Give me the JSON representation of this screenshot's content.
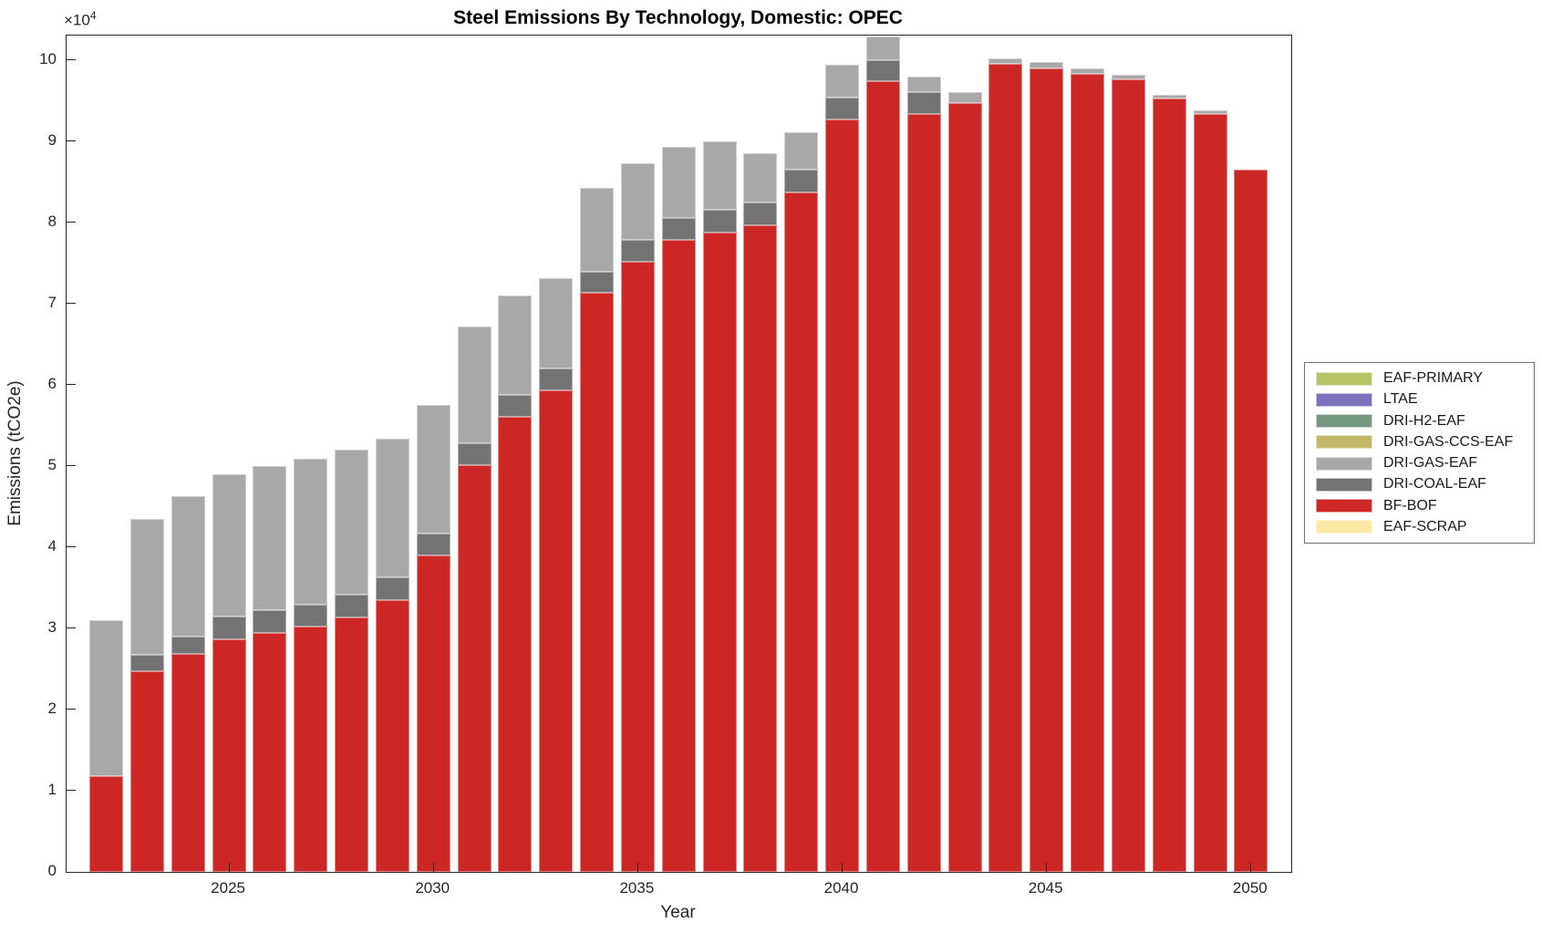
{
  "title": "Steel Emissions By Technology, Domestic: OPEC",
  "axes": {
    "xlabel": "Year",
    "ylabel": "Emissions (tCO2e)",
    "exponent_base": "×10",
    "exponent_power": "4",
    "y_ticks": [
      "0",
      "1",
      "2",
      "3",
      "4",
      "5",
      "6",
      "7",
      "8",
      "9",
      "10"
    ],
    "x_ticks": [
      "2025",
      "2030",
      "2035",
      "2040",
      "2045",
      "2050"
    ]
  },
  "chart_data": {
    "type": "bar",
    "stacked": true,
    "title": "Steel Emissions By Technology, Domestic: OPEC",
    "xlabel": "Year",
    "ylabel": "Emissions (tCO2e)",
    "ylim": [
      0,
      103000
    ],
    "xlim": [
      2021,
      2051
    ],
    "grid": false,
    "legend_position": "right-outside",
    "y_unit_exponent": "1e4",
    "categories": [
      2022,
      2023,
      2024,
      2025,
      2026,
      2027,
      2028,
      2029,
      2030,
      2031,
      2032,
      2033,
      2034,
      2035,
      2036,
      2037,
      2038,
      2039,
      2040,
      2041,
      2042,
      2043,
      2044,
      2045,
      2046,
      2047,
      2048,
      2049,
      2050
    ],
    "series": [
      {
        "name": "EAF-PRIMARY",
        "color": "#b8c266",
        "values": [
          0,
          0,
          0,
          0,
          0,
          0,
          0,
          0,
          0,
          0,
          0,
          0,
          0,
          0,
          0,
          0,
          0,
          0,
          0,
          0,
          0,
          0,
          0,
          0,
          0,
          0,
          0,
          0,
          0
        ]
      },
      {
        "name": "LTAE",
        "color": "#7b71ba",
        "values": [
          0,
          0,
          0,
          0,
          0,
          0,
          0,
          0,
          0,
          0,
          0,
          0,
          0,
          0,
          0,
          0,
          0,
          0,
          0,
          0,
          0,
          0,
          0,
          0,
          0,
          0,
          0,
          0,
          0
        ]
      },
      {
        "name": "DRI-H2-EAF",
        "color": "#74997e",
        "values": [
          0,
          0,
          0,
          0,
          0,
          0,
          0,
          0,
          0,
          0,
          0,
          0,
          0,
          0,
          0,
          0,
          0,
          0,
          0,
          0,
          0,
          0,
          0,
          0,
          0,
          0,
          0,
          0,
          0
        ]
      },
      {
        "name": "DRI-GAS-CCS-EAF",
        "color": "#c2b968",
        "values": [
          0,
          0,
          0,
          0,
          0,
          0,
          0,
          0,
          0,
          0,
          0,
          0,
          0,
          0,
          0,
          0,
          0,
          0,
          0,
          0,
          0,
          0,
          0,
          0,
          0,
          0,
          0,
          0,
          0
        ]
      },
      {
        "name": "DRI-GAS-EAF",
        "color": "#a8a8a8",
        "values": [
          19200,
          16800,
          17300,
          17600,
          17800,
          18000,
          17900,
          17100,
          15800,
          14400,
          12200,
          11100,
          10400,
          9500,
          8800,
          8500,
          6100,
          4600,
          4000,
          2900,
          2000,
          1300,
          700,
          800,
          700,
          600,
          500,
          500,
          0
        ]
      },
      {
        "name": "DRI-COAL-EAF",
        "color": "#737373",
        "values": [
          0,
          2000,
          2200,
          2700,
          2800,
          2700,
          2800,
          2800,
          2700,
          2700,
          2700,
          2700,
          2600,
          2600,
          2700,
          2800,
          2800,
          2800,
          2700,
          2600,
          2700,
          0,
          0,
          0,
          0,
          0,
          0,
          0,
          0
        ]
      },
      {
        "name": "BF-BOF",
        "color": "#cc2724",
        "values": [
          11800,
          24700,
          26800,
          28700,
          29400,
          30200,
          31300,
          33500,
          39000,
          50100,
          56100,
          59300,
          71300,
          75200,
          77800,
          78700,
          79600,
          83700,
          92700,
          97400,
          93300,
          94700,
          99500,
          99000,
          98300,
          97600,
          95200,
          93300,
          86500
        ]
      },
      {
        "name": "EAF-SCRAP",
        "color": "#fae8a4",
        "values": [
          0,
          0,
          0,
          0,
          0,
          0,
          0,
          0,
          0,
          0,
          0,
          0,
          0,
          0,
          0,
          0,
          0,
          0,
          0,
          0,
          0,
          0,
          0,
          0,
          0,
          0,
          0,
          0,
          0
        ]
      }
    ],
    "stack_order_bottom_to_top": [
      "EAF-SCRAP",
      "BF-BOF",
      "DRI-COAL-EAF",
      "DRI-GAS-EAF",
      "DRI-GAS-CCS-EAF",
      "DRI-H2-EAF",
      "LTAE",
      "EAF-PRIMARY"
    ],
    "totals": [
      31000,
      43500,
      46300,
      49000,
      50000,
      50900,
      52000,
      53400,
      57500,
      67200,
      71000,
      73100,
      84300,
      87300,
      89300,
      90000,
      88500,
      91100,
      99400,
      102900,
      98000,
      96000,
      100200,
      99800,
      99000,
      98200,
      95700,
      93800,
      86500
    ]
  },
  "legend": {
    "items": [
      {
        "label": "EAF-PRIMARY",
        "color": "#b8c266"
      },
      {
        "label": "LTAE",
        "color": "#7b71ba"
      },
      {
        "label": "DRI-H2-EAF",
        "color": "#74997e"
      },
      {
        "label": "DRI-GAS-CCS-EAF",
        "color": "#c2b968"
      },
      {
        "label": "DRI-GAS-EAF",
        "color": "#a8a8a8"
      },
      {
        "label": "DRI-COAL-EAF",
        "color": "#737373"
      },
      {
        "label": "BF-BOF",
        "color": "#cc2724"
      },
      {
        "label": "EAF-SCRAP",
        "color": "#fae8a4"
      }
    ]
  }
}
